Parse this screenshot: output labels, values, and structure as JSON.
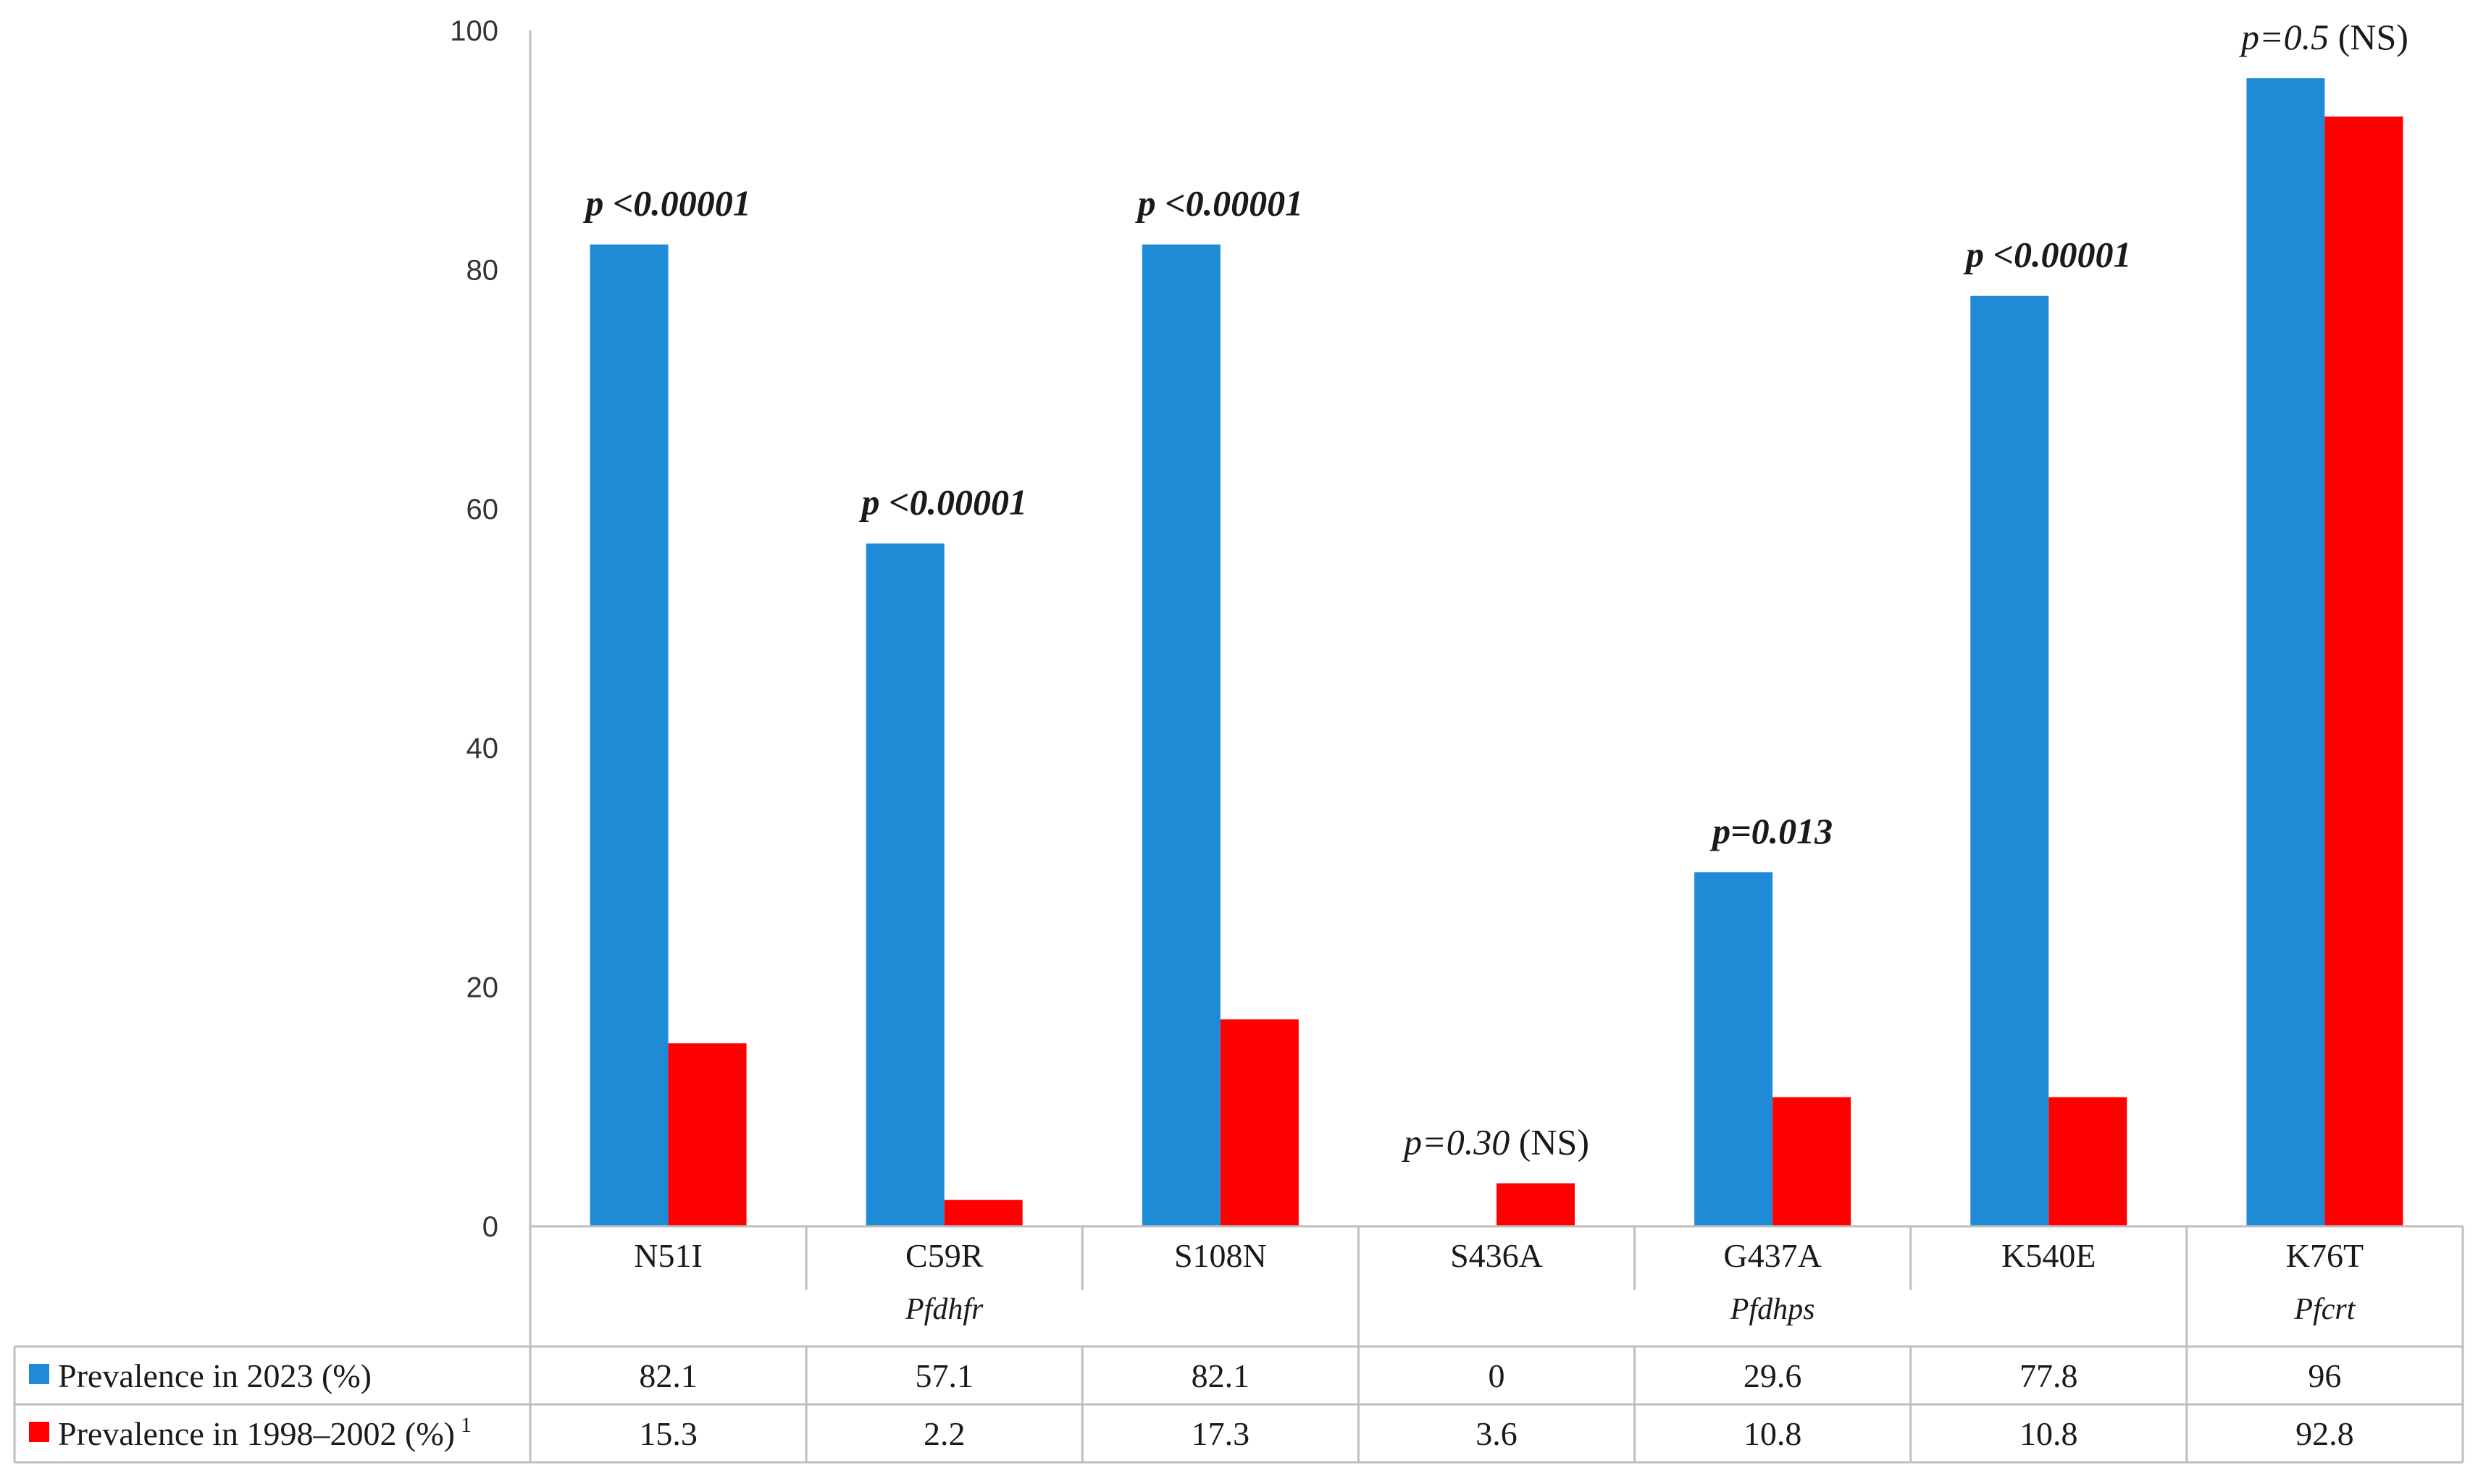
{
  "chart_data": {
    "type": "bar",
    "title": "",
    "xlabel": "",
    "ylabel": "",
    "ylim": [
      0,
      100
    ],
    "yticks": [
      "0",
      "20",
      "40",
      "60",
      "80",
      "100"
    ],
    "grid": false,
    "legend": "bottom-left table rows",
    "categories": [
      "N51I",
      "C59R",
      "S108N",
      "S436A",
      "G437A",
      "K540E",
      "K76T"
    ],
    "gene_groups": [
      {
        "name": "Pfdhfr",
        "categories": [
          "N51I",
          "C59R",
          "S108N"
        ]
      },
      {
        "name": "Pfdhps",
        "categories": [
          "S436A",
          "G437A",
          "K540E"
        ]
      },
      {
        "name": "Pfcrt",
        "categories": [
          "K76T"
        ]
      }
    ],
    "series": [
      {
        "name": "Prevalence in 2023 (%)",
        "color": "#1f8bd6",
        "values": [
          82.1,
          57.1,
          82.1,
          0,
          29.6,
          77.8,
          96
        ],
        "labels": [
          "82.1",
          "57.1",
          "82.1",
          "0",
          "29.6",
          "77.8",
          "96"
        ]
      },
      {
        "name": "Prevalence in 1998–2002 (%)",
        "superscript": "1",
        "color": "#ff0000",
        "values": [
          15.3,
          2.2,
          17.3,
          3.6,
          10.8,
          10.8,
          92.8
        ],
        "labels": [
          "15.3",
          "2.2",
          "17.3",
          "3.6",
          "10.8",
          "10.8",
          "92.8"
        ]
      }
    ],
    "annotations": [
      {
        "category": "N51I",
        "p": "p <0.00001",
        "suffix": "",
        "style": "bold"
      },
      {
        "category": "C59R",
        "p": "p <0.00001",
        "suffix": "",
        "style": "bold"
      },
      {
        "category": "S108N",
        "p": "p <0.00001",
        "suffix": "",
        "style": "bold"
      },
      {
        "category": "S436A",
        "p": "p=0.30",
        "suffix": " (NS)",
        "style": "italic"
      },
      {
        "category": "G437A",
        "p": "p=0.013",
        "suffix": "",
        "style": "bold"
      },
      {
        "category": "K540E",
        "p": "p <0.00001",
        "suffix": "",
        "style": "bold"
      },
      {
        "category": "K76T",
        "p": "p=0.5",
        "suffix": " (NS)",
        "style": "italic"
      }
    ]
  }
}
